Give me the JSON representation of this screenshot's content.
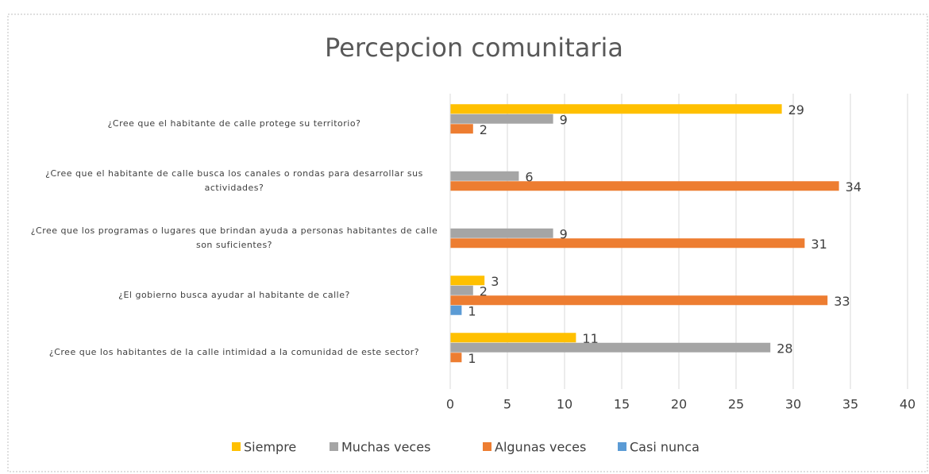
{
  "chart_data": {
    "type": "hbar",
    "title": "Percepcion comunitaria",
    "categories": [
      "¿Cree que el habitante de calle protege su territorio?",
      "¿Cree que el habitante de calle busca los canales o rondas para desarrollar sus actividades?",
      "¿Cree que los programas o lugares que brindan ayuda a personas habitantes de calle son suficientes?",
      "¿El gobierno busca ayudar al habitante de calle?",
      "¿Cree que los habitantes de la calle intimidad a la comunidad de este sector?"
    ],
    "series": [
      {
        "name": "Siempre",
        "color": "#ffc000",
        "values": [
          29,
          null,
          null,
          3,
          11
        ]
      },
      {
        "name": "Muchas veces",
        "color": "#a5a5a5",
        "values": [
          9,
          6,
          9,
          2,
          28
        ]
      },
      {
        "name": "Algunas veces",
        "color": "#ed7d31",
        "values": [
          2,
          34,
          31,
          33,
          1
        ]
      },
      {
        "name": "Casi nunca",
        "color": "#5b9bd5",
        "values": [
          null,
          null,
          null,
          1,
          null
        ]
      }
    ],
    "xlim": [
      0,
      40
    ],
    "xticks": [
      0,
      5,
      10,
      15,
      20,
      25,
      30,
      35,
      40
    ],
    "grid": true,
    "legend": "bottom"
  }
}
